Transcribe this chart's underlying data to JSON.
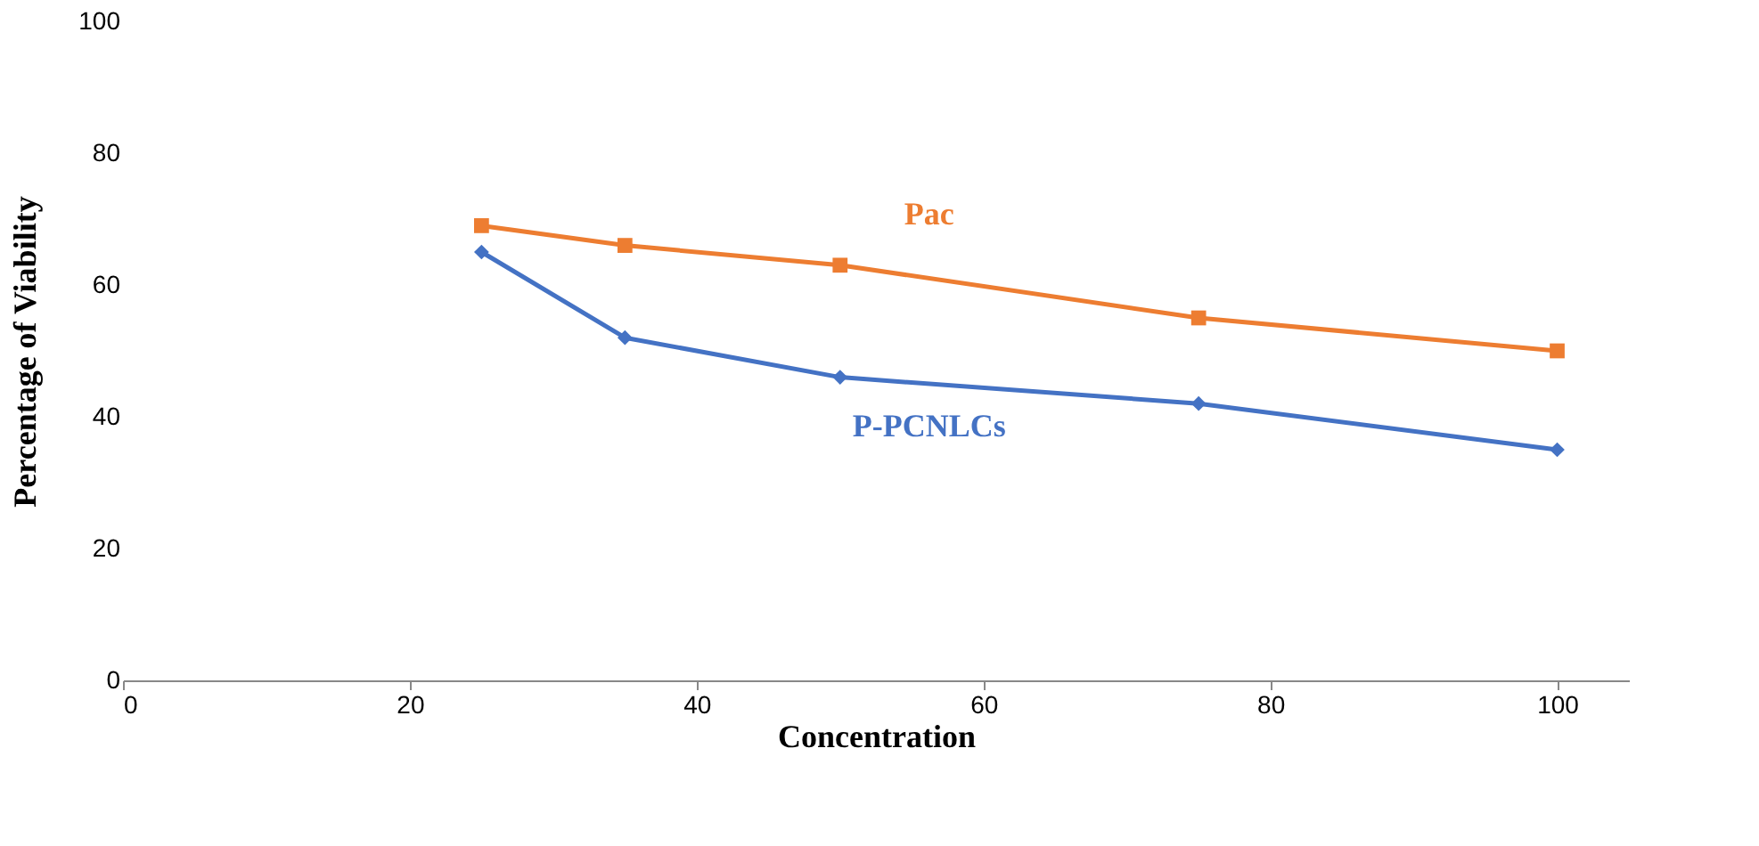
{
  "chart_data": {
    "type": "line",
    "xlabel": "Concentration",
    "ylabel": "Percentage of Viability",
    "xlim": [
      0,
      105
    ],
    "xticks": [
      0,
      20,
      40,
      60,
      80,
      100
    ],
    "ylim": [
      0,
      100
    ],
    "yticks": [
      0,
      20,
      40,
      60,
      80,
      100
    ],
    "grid": false,
    "legend": false,
    "line_style": "solid",
    "x": [
      25,
      35,
      50,
      75,
      100
    ],
    "series": [
      {
        "name": "P-PCNLCs",
        "color": "#4472c4",
        "marker": "diamond",
        "values": [
          65,
          52,
          46,
          42,
          35
        ]
      },
      {
        "name": "Pac",
        "color": "#ed7d31",
        "marker": "square",
        "values": [
          69,
          66,
          63,
          55,
          50
        ]
      }
    ]
  }
}
